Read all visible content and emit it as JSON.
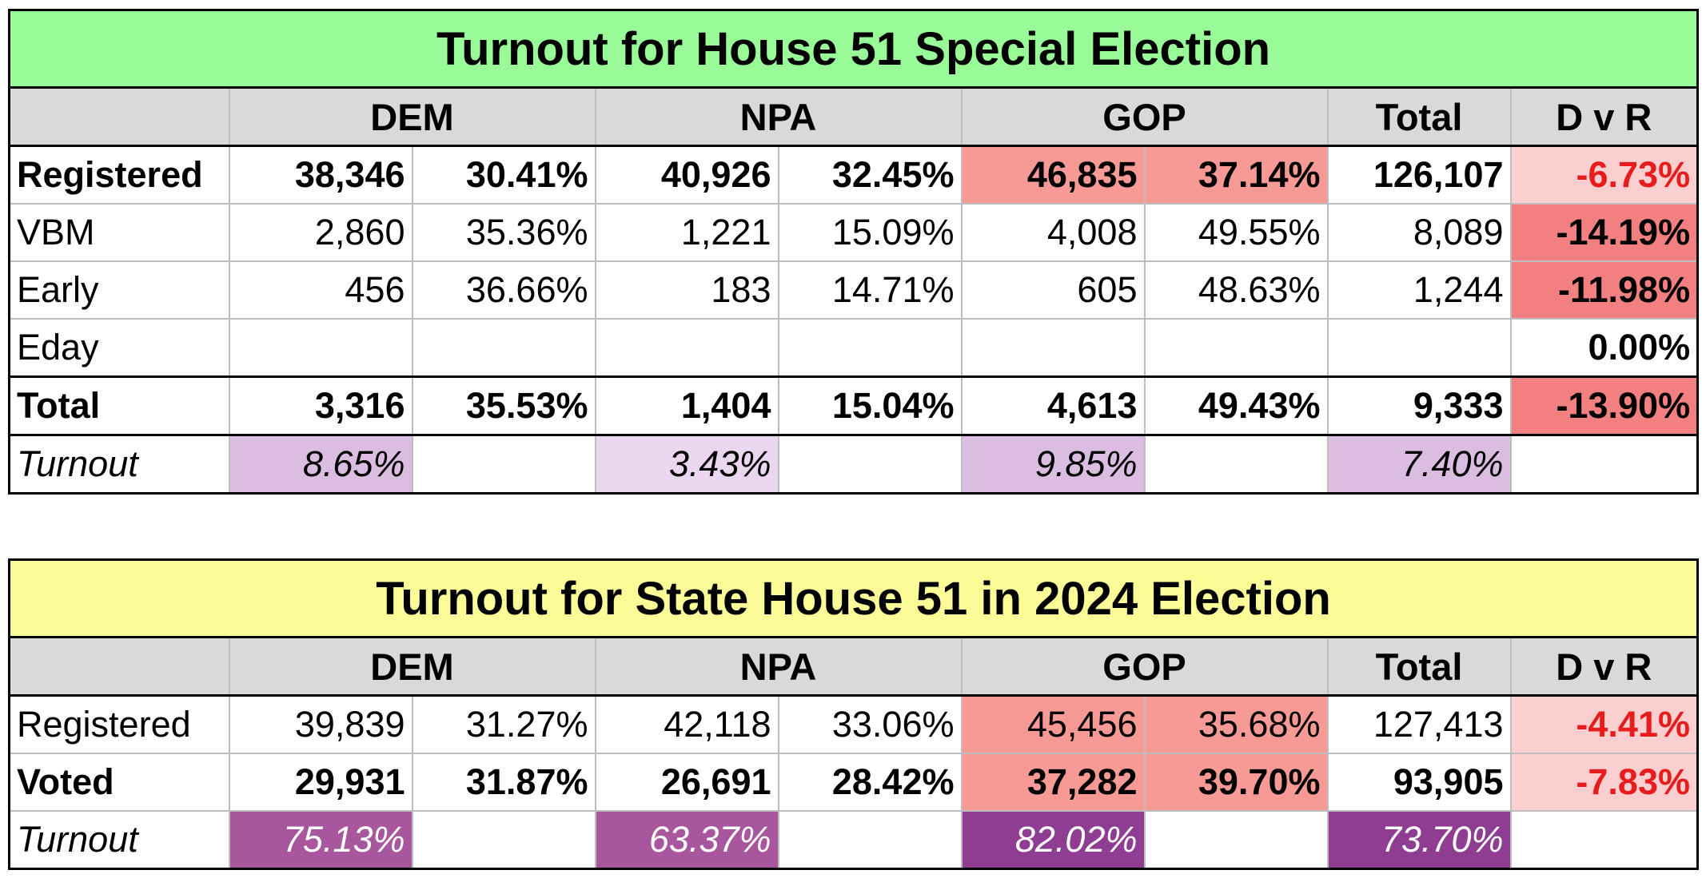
{
  "table1": {
    "title": "Turnout for House 51 Special Election",
    "headers": [
      "DEM",
      "NPA",
      "GOP",
      "Total",
      "D v R"
    ],
    "rows": [
      {
        "label": "Registered",
        "cells": [
          "38,346",
          "30.41%",
          "40,926",
          "32.45%",
          "46,835",
          "37.14%",
          "126,107",
          "-6.73%"
        ]
      },
      {
        "label": "VBM",
        "cells": [
          "2,860",
          "35.36%",
          "1,221",
          "15.09%",
          "4,008",
          "49.55%",
          "8,089",
          "-14.19%"
        ]
      },
      {
        "label": "Early",
        "cells": [
          "456",
          "36.66%",
          "183",
          "14.71%",
          "605",
          "48.63%",
          "1,244",
          "-11.98%"
        ]
      },
      {
        "label": "Eday",
        "cells": [
          "",
          "",
          "",
          "",
          "",
          "",
          "",
          "0.00%"
        ]
      },
      {
        "label": "Total",
        "cells": [
          "3,316",
          "35.53%",
          "1,404",
          "15.04%",
          "4,613",
          "49.43%",
          "9,333",
          "-13.90%"
        ]
      },
      {
        "label": "Turnout",
        "cells": [
          "8.65%",
          "",
          "3.43%",
          "",
          "9.85%",
          "",
          "7.40%",
          ""
        ]
      }
    ]
  },
  "table2": {
    "title": "Turnout for State House 51 in 2024 Election",
    "headers": [
      "DEM",
      "NPA",
      "GOP",
      "Total",
      "D v R"
    ],
    "rows": [
      {
        "label": "Registered",
        "cells": [
          "39,839",
          "31.27%",
          "42,118",
          "33.06%",
          "45,456",
          "35.68%",
          "127,413",
          "-4.41%"
        ]
      },
      {
        "label": "Voted",
        "cells": [
          "29,931",
          "31.87%",
          "26,691",
          "28.42%",
          "37,282",
          "39.70%",
          "93,905",
          "-7.83%"
        ]
      },
      {
        "label": "Turnout",
        "cells": [
          "75.13%",
          "",
          "63.37%",
          "",
          "82.02%",
          "",
          "73.70%",
          ""
        ]
      }
    ]
  },
  "colors": {
    "title1_bg": "#98fb98",
    "title2_bg": "#fbfb98",
    "header_bg": "#d9d9d9",
    "gop_highlight": "#f79a96",
    "dvr_light": "#fbcfcf",
    "dvr_strong": "#f28080",
    "dvr_text_red": "#e81c1c",
    "turnout_light": "#dbbde1",
    "turnout_dark": "#8f3d93"
  }
}
